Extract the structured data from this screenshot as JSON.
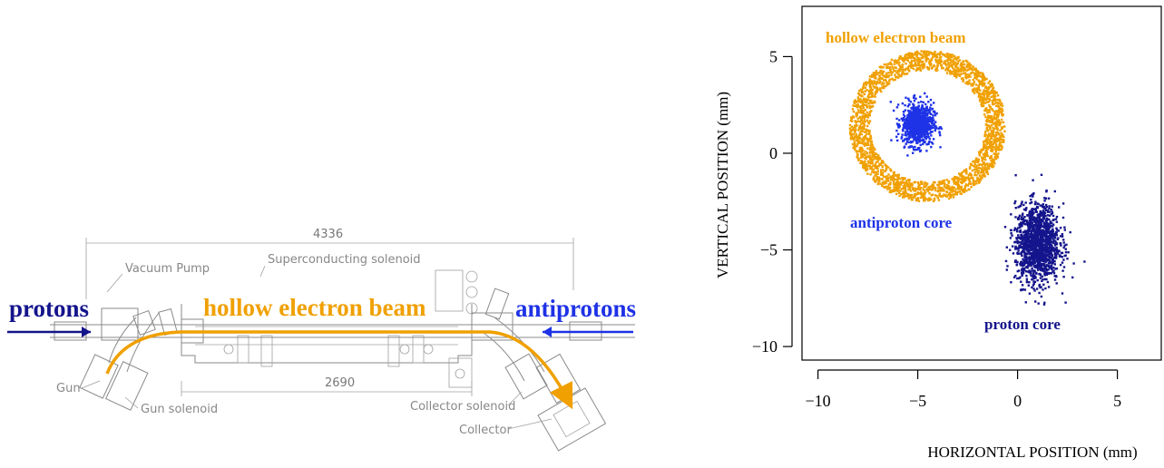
{
  "colors": {
    "proton": "#14148c",
    "antiproton": "#1e32e6",
    "electron": "#f0a000",
    "drawing": "#8a8a8a"
  },
  "drawing": {
    "dimension_total": "4336",
    "dimension_inner": "2690",
    "superconducting_solenoid": "Superconducting solenoid",
    "vacuum_pump": "Vacuum Pump",
    "gun": "Gun",
    "gun_solenoid": "Gun solenoid",
    "collector_solenoid": "Collector solenoid",
    "collector": "Collector",
    "protons": "protons",
    "antiprotons": "antiprotons",
    "hollow_electron_beam": "hollow electron beam"
  },
  "chart_data": {
    "type": "scatter",
    "xlabel": "HORIZONTAL POSITION (mm)",
    "ylabel": "VERTICAL POSITION (mm)",
    "xlim": [
      -10.8,
      7.2
    ],
    "ylim": [
      -10.7,
      7.6
    ],
    "xticks": [
      -10,
      -5,
      0,
      5
    ],
    "yticks": [
      -10,
      -5,
      0,
      5
    ],
    "xtick_labels": [
      "−10",
      "−5",
      "0",
      "5"
    ],
    "ytick_labels": [
      "−10",
      "−5",
      "0",
      "5"
    ],
    "series": [
      {
        "name": "hollow electron beam",
        "shape": "ring",
        "center": [
          -4.5,
          1.4
        ],
        "r_inner": 2.9,
        "r_outer": 3.9,
        "color": "#f0a000"
      },
      {
        "name": "antiproton core",
        "shape": "gaussian",
        "center": [
          -5.0,
          1.5
        ],
        "sigma": [
          0.4,
          0.55
        ],
        "color": "#1e32e6"
      },
      {
        "name": "proton core",
        "shape": "gaussian",
        "center": [
          1.0,
          -4.7
        ],
        "sigma": [
          0.55,
          1.0
        ],
        "color": "#14148c"
      }
    ],
    "annotations": {
      "hollow_electron_beam": "hollow electron beam",
      "antiproton_core": "antiproton core",
      "proton_core": "proton core"
    },
    "grid": false
  }
}
